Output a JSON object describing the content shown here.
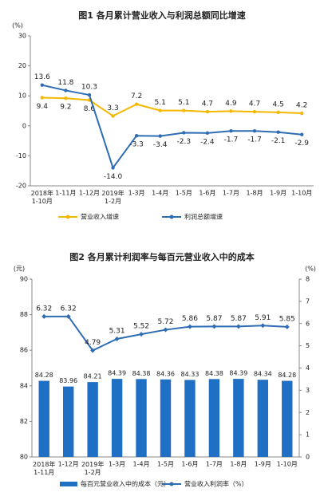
{
  "chart_data": [
    {
      "type": "line",
      "title": "图1  各月累计营业收入与利润总额同比增速",
      "y_unit": "(%)",
      "categories": [
        "2018年\n1-10月",
        "1-11月",
        "1-12月",
        "2019年\n1-2月",
        "1-3月",
        "1-4月",
        "1-5月",
        "1-6月",
        "1-7月",
        "1-8月",
        "1-9月",
        "1-10月"
      ],
      "series": [
        {
          "name": "营业收入增速",
          "color": "#f5b800",
          "type": "line",
          "values": [
            9.4,
            9.2,
            8.6,
            3.3,
            7.2,
            5.1,
            5.1,
            4.7,
            4.9,
            4.7,
            4.5,
            4.2
          ]
        },
        {
          "name": "利润总额增速",
          "color": "#2e6db4",
          "type": "line",
          "values": [
            13.6,
            11.8,
            10.3,
            -14.0,
            -3.3,
            -3.4,
            -2.3,
            -2.4,
            -1.7,
            -1.7,
            -2.1,
            -2.9
          ],
          "value_labels": [
            "13.6",
            "11.8",
            "10.3",
            "-14.0",
            "-3.3",
            "-3.4",
            "-2.3",
            "-2.4",
            "-1.7",
            "-1.7",
            "-2.1",
            "-2.9"
          ]
        }
      ],
      "ylim": [
        -20,
        30
      ],
      "yticks": [
        -20,
        -10,
        0,
        10,
        20,
        30
      ],
      "legend": "bottom"
    },
    {
      "type": "combo",
      "title": "图2  各月累计利润率与每百元营业收入中的成本",
      "y_unit": "(元)",
      "y2_unit": "(%)",
      "categories": [
        "2018年\n1-11月",
        "1-12月",
        "2019年\n1-2月",
        "1-3月",
        "1-4月",
        "1-5月",
        "1-6月",
        "1-7月",
        "1-8月",
        "1-9月",
        "1-10月"
      ],
      "series": [
        {
          "name": "每百元营业收入中的成本（元）",
          "color": "#1f6fc5",
          "type": "bar",
          "values": [
            84.28,
            83.96,
            84.21,
            84.39,
            84.38,
            84.36,
            84.33,
            84.38,
            84.39,
            84.34,
            84.28
          ]
        },
        {
          "name": "营业收入利润率（%）",
          "color": "#2e6db4",
          "type": "line",
          "axis": "y2",
          "values": [
            6.32,
            6.32,
            4.79,
            5.31,
            5.52,
            5.72,
            5.86,
            5.87,
            5.87,
            5.91,
            5.85
          ]
        }
      ],
      "ylim": [
        80,
        90
      ],
      "yticks": [
        80,
        82,
        84,
        86,
        88,
        90
      ],
      "y2lim": [
        0,
        8
      ],
      "y2ticks": [
        0,
        1,
        2,
        3,
        4,
        5,
        6,
        7,
        8
      ],
      "legend": "bottom"
    }
  ]
}
